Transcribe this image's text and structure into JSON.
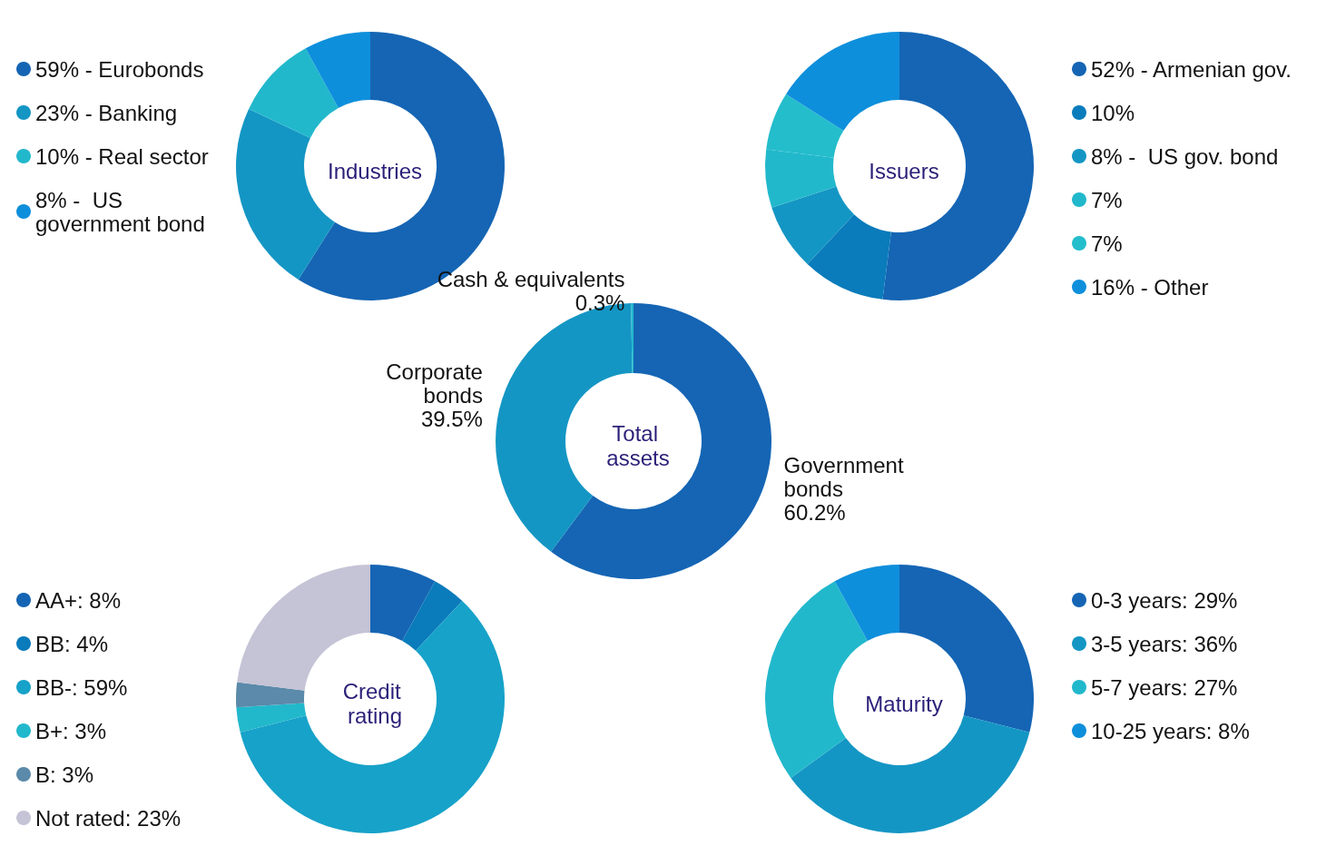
{
  "chart_data": [
    {
      "type": "donut",
      "title": "Industries",
      "categories": [
        "59% - Eurobonds",
        "23% - Banking",
        "10% - Real sector",
        "8% -  US government bond"
      ],
      "values": [
        59,
        23,
        10,
        8
      ],
      "colors": [
        "#1565b4",
        "#1496c4",
        "#22b8cc",
        "#0e8fdc"
      ],
      "legend": "left"
    },
    {
      "type": "donut",
      "title": "Issuers",
      "categories": [
        "52% - Armenian gov.",
        "10%",
        "8% -  US gov. bond",
        "7%",
        "7%",
        "16% - Other"
      ],
      "values": [
        52,
        10,
        8,
        7,
        7,
        16
      ],
      "colors": [
        "#1565b4",
        "#0a7bbb",
        "#1496c4",
        "#22b8cc",
        "#24bdcc",
        "#0e8fdc"
      ],
      "legend": "right"
    },
    {
      "type": "donut",
      "title": "Total assets",
      "categories": [
        "Government bonds",
        "Corporate bonds",
        "Cash & equivalents"
      ],
      "values": [
        60.2,
        39.5,
        0.3
      ],
      "colors": [
        "#1565b4",
        "#1496c4",
        "#22b8cc"
      ],
      "value_labels": [
        "60.2%",
        "39.5%",
        "0.3%"
      ]
    },
    {
      "type": "donut",
      "title": "Credit rating",
      "categories": [
        "AA+: 8%",
        "BB: 4%",
        "BB-: 59%",
        "B+: 3%",
        "B: 3%",
        "Not rated: 23%"
      ],
      "values": [
        8,
        4,
        59,
        3,
        3,
        23
      ],
      "colors": [
        "#1565b4",
        "#0a7bbb",
        "#17a2c9",
        "#22b8cc",
        "#5b8aaa",
        "#c5c3d6"
      ],
      "legend": "left"
    },
    {
      "type": "donut",
      "title": "Maturity",
      "categories": [
        "0-3 years: 29%",
        "3-5 years: 36%",
        "5-7 years: 27%",
        "10-25 years: 8%"
      ],
      "values": [
        29,
        36,
        27,
        8
      ],
      "colors": [
        "#1565b4",
        "#1496c4",
        "#22b8cc",
        "#0e8fdc"
      ],
      "legend": "right"
    }
  ]
}
